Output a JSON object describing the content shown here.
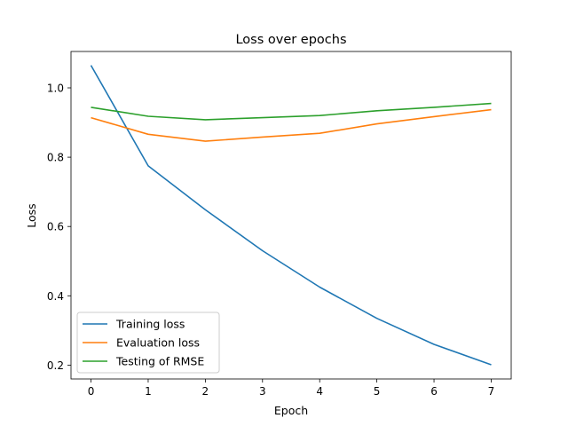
{
  "chart_data": {
    "type": "line",
    "title": "Loss over epochs",
    "xlabel": "Epoch",
    "ylabel": "Loss",
    "x": [
      0,
      1,
      2,
      3,
      4,
      5,
      6,
      7
    ],
    "xlim": [
      -0.35,
      7.35
    ],
    "ylim": [
      0.16,
      1.105
    ],
    "xticks": [
      0,
      1,
      2,
      3,
      4,
      5,
      6,
      7
    ],
    "yticks": [
      0.2,
      0.4,
      0.6,
      0.8,
      1.0
    ],
    "ytick_labels": [
      "0.2",
      "0.4",
      "0.6",
      "0.8",
      "1.0"
    ],
    "grid": false,
    "legend_position": "lower-left",
    "series": [
      {
        "name": "Training loss",
        "color": "#1f77b4",
        "values": [
          1.065,
          0.775,
          0.648,
          0.53,
          0.425,
          0.335,
          0.26,
          0.201
        ]
      },
      {
        "name": "Evaluation loss",
        "color": "#ff7f0e",
        "values": [
          0.914,
          0.866,
          0.846,
          0.858,
          0.869,
          0.896,
          0.917,
          0.937
        ]
      },
      {
        "name": "Testing of RMSE",
        "color": "#2ca02c",
        "values": [
          0.944,
          0.918,
          0.908,
          0.914,
          0.92,
          0.934,
          0.944,
          0.955
        ]
      }
    ]
  }
}
